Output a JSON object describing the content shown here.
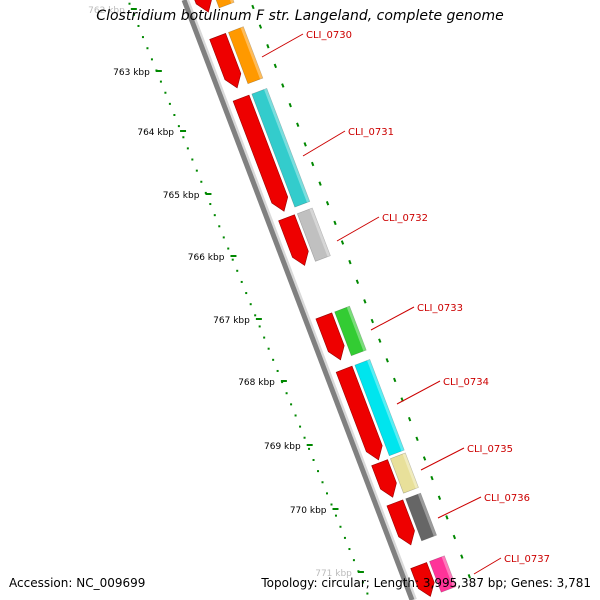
{
  "header": {
    "title": "Clostridium botulinum F str. Langeland, complete genome"
  },
  "footer": {
    "accession": "Accession: NC_009699",
    "summary": "Topology: circular; Length: 3,995,387 bp; Genes: 3,781"
  },
  "scale_labels": [
    "762 kbp",
    "763 kbp",
    "764 kbp",
    "765 kbp",
    "766 kbp",
    "767 kbp",
    "768 kbp",
    "769 kbp",
    "770 kbp",
    "771 kbp"
  ],
  "genes": [
    {
      "label": "CLI_0730",
      "color": "#ff9900"
    },
    {
      "label": "CLI_0731",
      "color": "#33cccc"
    },
    {
      "label": "CLI_0732",
      "color": "#c0c0c0"
    },
    {
      "label": "CLI_0733",
      "color": "#33cc33"
    },
    {
      "label": "CLI_0734",
      "color": "#00e5ee"
    },
    {
      "label": "CLI_0735",
      "color": "#e8e09a"
    },
    {
      "label": "CLI_0736",
      "color": "#666666"
    },
    {
      "label": "CLI_0737",
      "color": "#ff3399"
    }
  ],
  "colors": {
    "cds": "#ee0000",
    "backbone": "#808080",
    "gc_ticks": "#007700",
    "label": "#cc0000"
  }
}
